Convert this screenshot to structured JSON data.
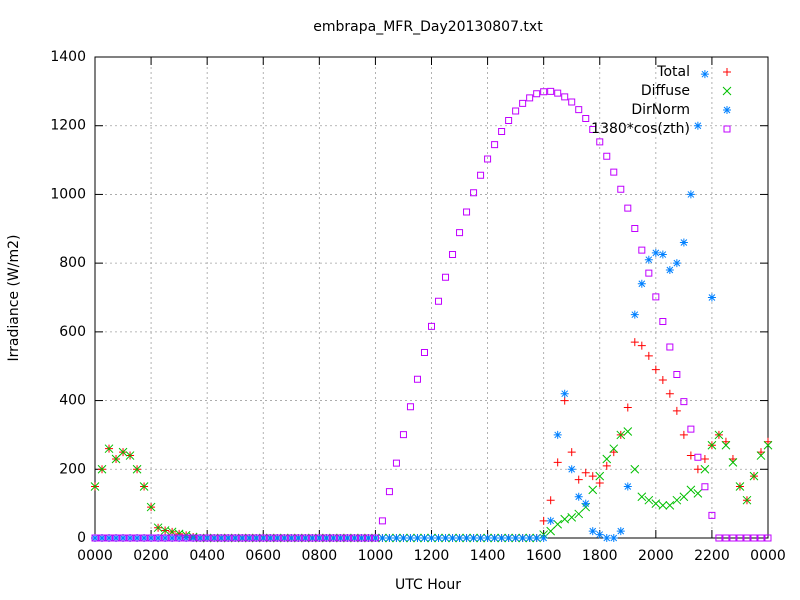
{
  "chart_data": {
    "type": "scatter",
    "title": "embrapa_MFR_Day20130807.txt",
    "x_label": "UTC Hour",
    "y_label": "Irradiance (W/m2)",
    "xlim": [
      0,
      24
    ],
    "ylim": [
      0,
      1400
    ],
    "xticks": [
      {
        "value": 0,
        "label": "0000"
      },
      {
        "value": 2,
        "label": "0200"
      },
      {
        "value": 4,
        "label": "0400"
      },
      {
        "value": 6,
        "label": "0600"
      },
      {
        "value": 8,
        "label": "0800"
      },
      {
        "value": 10,
        "label": "1000"
      },
      {
        "value": 12,
        "label": "1200"
      },
      {
        "value": 14,
        "label": "1400"
      },
      {
        "value": 16,
        "label": "1600"
      },
      {
        "value": 18,
        "label": "1800"
      },
      {
        "value": 20,
        "label": "2000"
      },
      {
        "value": 22,
        "label": "2200"
      },
      {
        "value": 24,
        "label": "0000"
      }
    ],
    "yticks": [
      0,
      200,
      400,
      600,
      800,
      1000,
      1200,
      1400
    ],
    "grid": true,
    "legend": "top-right",
    "x": [
      0,
      0.25,
      0.5,
      0.75,
      1,
      1.25,
      1.5,
      1.75,
      2,
      2.25,
      2.5,
      2.75,
      3,
      3.25,
      3.5,
      3.75,
      4,
      4.25,
      4.5,
      4.75,
      5,
      5.25,
      5.5,
      5.75,
      6,
      6.25,
      6.5,
      6.75,
      7,
      7.25,
      7.5,
      7.75,
      8,
      8.25,
      8.5,
      8.75,
      9,
      9.25,
      9.5,
      9.75,
      10,
      10.25,
      10.5,
      10.75,
      11,
      11.25,
      11.5,
      11.75,
      12,
      12.25,
      12.5,
      12.75,
      13,
      13.25,
      13.5,
      13.75,
      14,
      14.25,
      14.5,
      14.75,
      15,
      15.25,
      15.5,
      15.75,
      16,
      16.25,
      16.5,
      16.75,
      17,
      17.25,
      17.5,
      17.75,
      18,
      18.25,
      18.5,
      18.75,
      19,
      19.25,
      19.5,
      19.75,
      20,
      20.25,
      20.5,
      20.75,
      21,
      21.25,
      21.5,
      21.75,
      22,
      22.25,
      22.5,
      22.75,
      23,
      23.25,
      23.5,
      23.75,
      24
    ],
    "series": [
      {
        "name": "Total",
        "color": "#ff0000",
        "marker": "plus",
        "values": [
          150,
          200,
          260,
          230,
          250,
          240,
          200,
          150,
          90,
          30,
          22,
          18,
          12,
          8,
          3,
          0,
          0,
          0,
          0,
          0,
          0,
          0,
          0,
          0,
          0,
          0,
          0,
          0,
          0,
          0,
          0,
          0,
          0,
          0,
          0,
          0,
          0,
          0,
          0,
          0,
          0,
          0,
          0,
          0,
          0,
          0,
          0,
          0,
          0,
          0,
          0,
          0,
          0,
          0,
          0,
          0,
          0,
          0,
          0,
          0,
          0,
          0,
          0,
          0,
          50,
          110,
          220,
          400,
          250,
          170,
          190,
          180,
          160,
          210,
          250,
          300,
          380,
          570,
          560,
          530,
          490,
          460,
          420,
          370,
          300,
          240,
          200,
          230,
          270,
          300,
          280,
          230,
          150,
          110,
          180,
          250,
          280
        ]
      },
      {
        "name": "Diffuse",
        "color": "#00c000",
        "marker": "cross",
        "values": [
          150,
          200,
          260,
          230,
          250,
          240,
          200,
          150,
          90,
          30,
          22,
          18,
          12,
          8,
          3,
          0,
          0,
          0,
          0,
          0,
          0,
          0,
          0,
          0,
          0,
          0,
          0,
          0,
          0,
          0,
          0,
          0,
          0,
          0,
          0,
          0,
          0,
          0,
          0,
          0,
          0,
          0,
          0,
          0,
          0,
          0,
          0,
          0,
          0,
          0,
          0,
          0,
          0,
          0,
          0,
          0,
          0,
          0,
          0,
          0,
          0,
          0,
          0,
          0,
          10,
          20,
          40,
          55,
          60,
          70,
          90,
          140,
          180,
          230,
          260,
          300,
          310,
          200,
          120,
          110,
          100,
          95,
          95,
          110,
          120,
          140,
          130,
          200,
          270,
          300,
          270,
          220,
          150,
          110,
          180,
          240,
          270
        ]
      },
      {
        "name": "DirNorm",
        "color": "#0080ff",
        "marker": "star",
        "values": [
          0,
          0,
          0,
          0,
          0,
          0,
          0,
          0,
          0,
          0,
          0,
          0,
          0,
          0,
          0,
          0,
          0,
          0,
          0,
          0,
          0,
          0,
          0,
          0,
          0,
          0,
          0,
          0,
          0,
          0,
          0,
          0,
          0,
          0,
          0,
          0,
          0,
          0,
          0,
          0,
          0,
          0,
          0,
          0,
          0,
          0,
          0,
          0,
          0,
          0,
          0,
          0,
          0,
          0,
          0,
          0,
          0,
          0,
          0,
          0,
          0,
          0,
          0,
          0,
          0,
          50,
          300,
          420,
          200,
          120,
          100,
          20,
          10,
          0,
          0,
          20,
          150,
          650,
          740,
          810,
          830,
          825,
          780,
          800,
          860,
          1000,
          1200,
          1350,
          700,
          null,
          null,
          null,
          null,
          null,
          null,
          null,
          null
        ]
      },
      {
        "name": "1380*cos(zth)",
        "color": "#c000ff",
        "marker": "square",
        "values": [
          0,
          0,
          0,
          0,
          0,
          0,
          0,
          0,
          0,
          0,
          0,
          0,
          0,
          0,
          0,
          0,
          0,
          0,
          0,
          0,
          0,
          0,
          0,
          0,
          0,
          0,
          0,
          0,
          0,
          0,
          0,
          0,
          0,
          0,
          0,
          0,
          0,
          0,
          0,
          0,
          0,
          50,
          135,
          218,
          301,
          382,
          462,
          540,
          616,
          689,
          759,
          825,
          889,
          949,
          1005,
          1056,
          1103,
          1145,
          1183,
          1215,
          1243,
          1265,
          1281,
          1293,
          1299,
          1300,
          1295,
          1284,
          1269,
          1247,
          1221,
          1189,
          1153,
          1111,
          1065,
          1015,
          960,
          901,
          838,
          771,
          702,
          630,
          556,
          476,
          397,
          317,
          235,
          149,
          66,
          0,
          0,
          0,
          0,
          0,
          0,
          0,
          0
        ]
      }
    ]
  }
}
